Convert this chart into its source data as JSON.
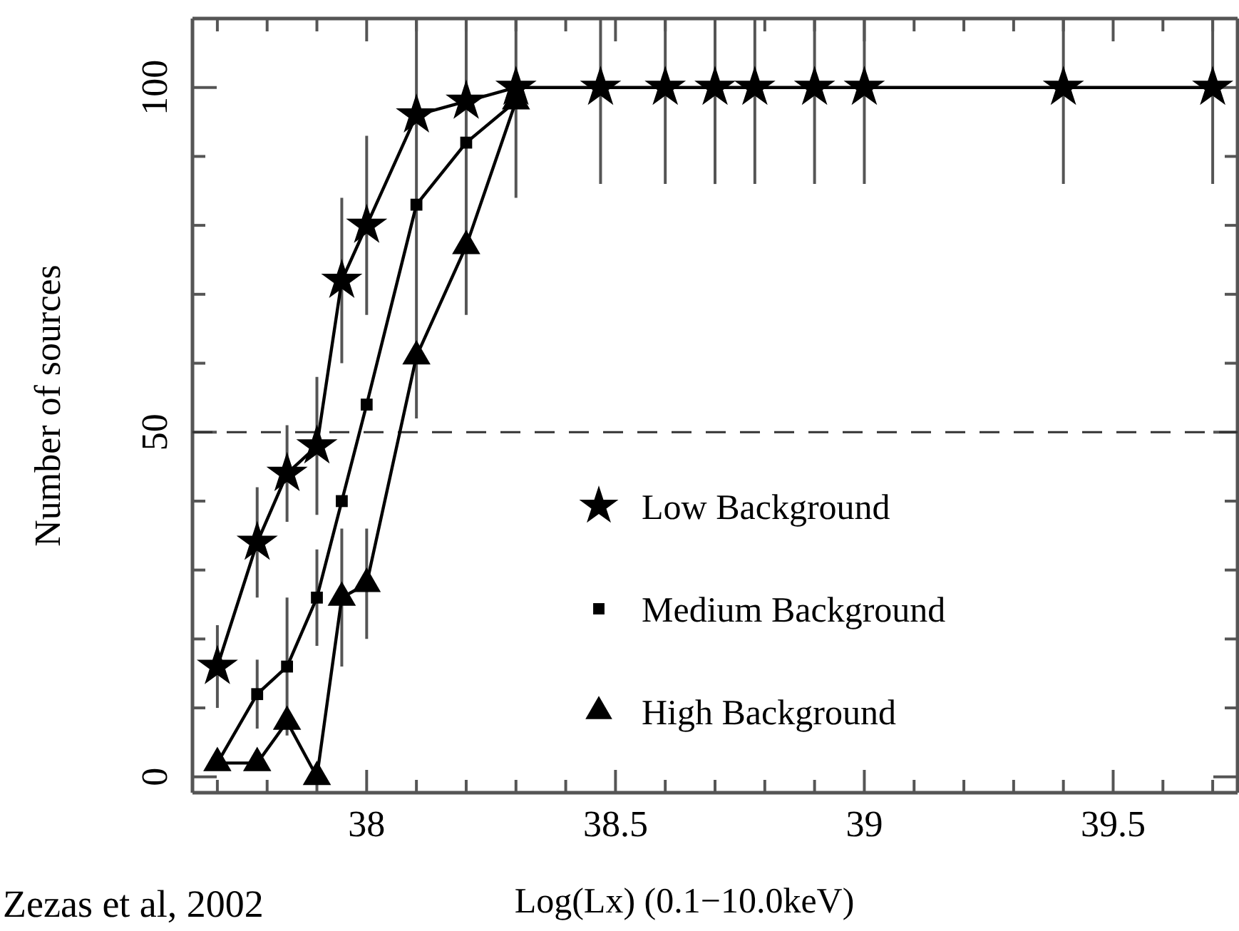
{
  "chart_data": {
    "type": "line",
    "xlabel": "Log(Lx) (0.1−10.0keV)",
    "ylabel": "Number of sources",
    "x": [
      37.7,
      37.78,
      37.84,
      37.9,
      37.95,
      38.0,
      38.1,
      38.2,
      38.3,
      38.47,
      38.6,
      38.7,
      38.78,
      38.9,
      39.0,
      39.4,
      39.7
    ],
    "series": [
      {
        "name": "Low Background",
        "color": "#000000",
        "marker": "star",
        "values": [
          16,
          34,
          44,
          48,
          72,
          80,
          96,
          98,
          100,
          100,
          100,
          100,
          100,
          100,
          100,
          100,
          100
        ],
        "errors": [
          6,
          8,
          7,
          10,
          12,
          13,
          [
            52,
            110
          ],
          [
            67,
            110
          ],
          [
            84,
            110
          ],
          [
            86,
            110
          ],
          [
            86,
            110
          ],
          [
            86,
            110
          ],
          [
            86,
            110
          ],
          [
            86,
            110
          ],
          [
            86,
            110
          ],
          [
            86,
            110
          ],
          [
            86,
            110
          ]
        ]
      },
      {
        "name": "Medium Background",
        "color": "#000000",
        "marker": "square",
        "values": [
          2,
          12,
          16,
          26,
          40,
          54,
          83,
          92,
          98,
          null,
          null,
          null,
          null,
          null,
          null,
          null,
          null
        ],
        "errors": [
          null,
          5,
          10,
          7,
          null,
          null,
          null,
          null,
          null,
          null,
          null,
          null,
          null,
          null,
          null,
          null,
          null
        ]
      },
      {
        "name": "High Background",
        "color": "#000000",
        "marker": "triangle",
        "values": [
          2,
          2,
          8,
          0,
          26,
          28,
          61,
          77,
          98,
          null,
          null,
          null,
          null,
          null,
          null,
          null,
          null
        ],
        "errors": [
          null,
          null,
          null,
          null,
          10,
          8,
          null,
          null,
          null,
          null,
          null,
          null,
          null,
          null,
          null,
          null,
          null
        ]
      }
    ],
    "xlim": [
      37.65,
      39.75
    ],
    "xticks": [
      {
        "value": 37.7,
        "label": null
      },
      {
        "value": 37.8,
        "label": null
      },
      {
        "value": 37.9,
        "label": null
      },
      38,
      {
        "value": 38.1,
        "label": null
      },
      {
        "value": 38.2,
        "label": null
      },
      {
        "value": 38.3,
        "label": null
      },
      {
        "value": 38.4,
        "label": null
      },
      38.5,
      {
        "value": 38.6,
        "label": null
      },
      {
        "value": 38.7,
        "label": null
      },
      {
        "value": 38.8,
        "label": null
      },
      {
        "value": 38.9,
        "label": null
      },
      39,
      {
        "value": 39.1,
        "label": null
      },
      {
        "value": 39.2,
        "label": null
      },
      {
        "value": 39.3,
        "label": null
      },
      {
        "value": 39.4,
        "label": null
      },
      39.5,
      {
        "value": 39.6,
        "label": null
      },
      {
        "value": 39.7,
        "label": null
      }
    ],
    "ylim": [
      -2.3,
      110
    ],
    "yticks": [
      0,
      {
        "value": 10,
        "label": null
      },
      {
        "value": 20,
        "label": null
      },
      {
        "value": 30,
        "label": null
      },
      {
        "value": 40,
        "label": null
      },
      50,
      {
        "value": 60,
        "label": null
      },
      {
        "value": 70,
        "label": null
      },
      {
        "value": 80,
        "label": null
      },
      {
        "value": 90,
        "label": null
      },
      100
    ],
    "ref_lines": [
      {
        "axis": "y",
        "value": 50,
        "label": null,
        "line_style": "dashed"
      }
    ],
    "legend": "bottom right",
    "grid": false,
    "annotations": [
      "Zezas et al, 2002"
    ]
  }
}
